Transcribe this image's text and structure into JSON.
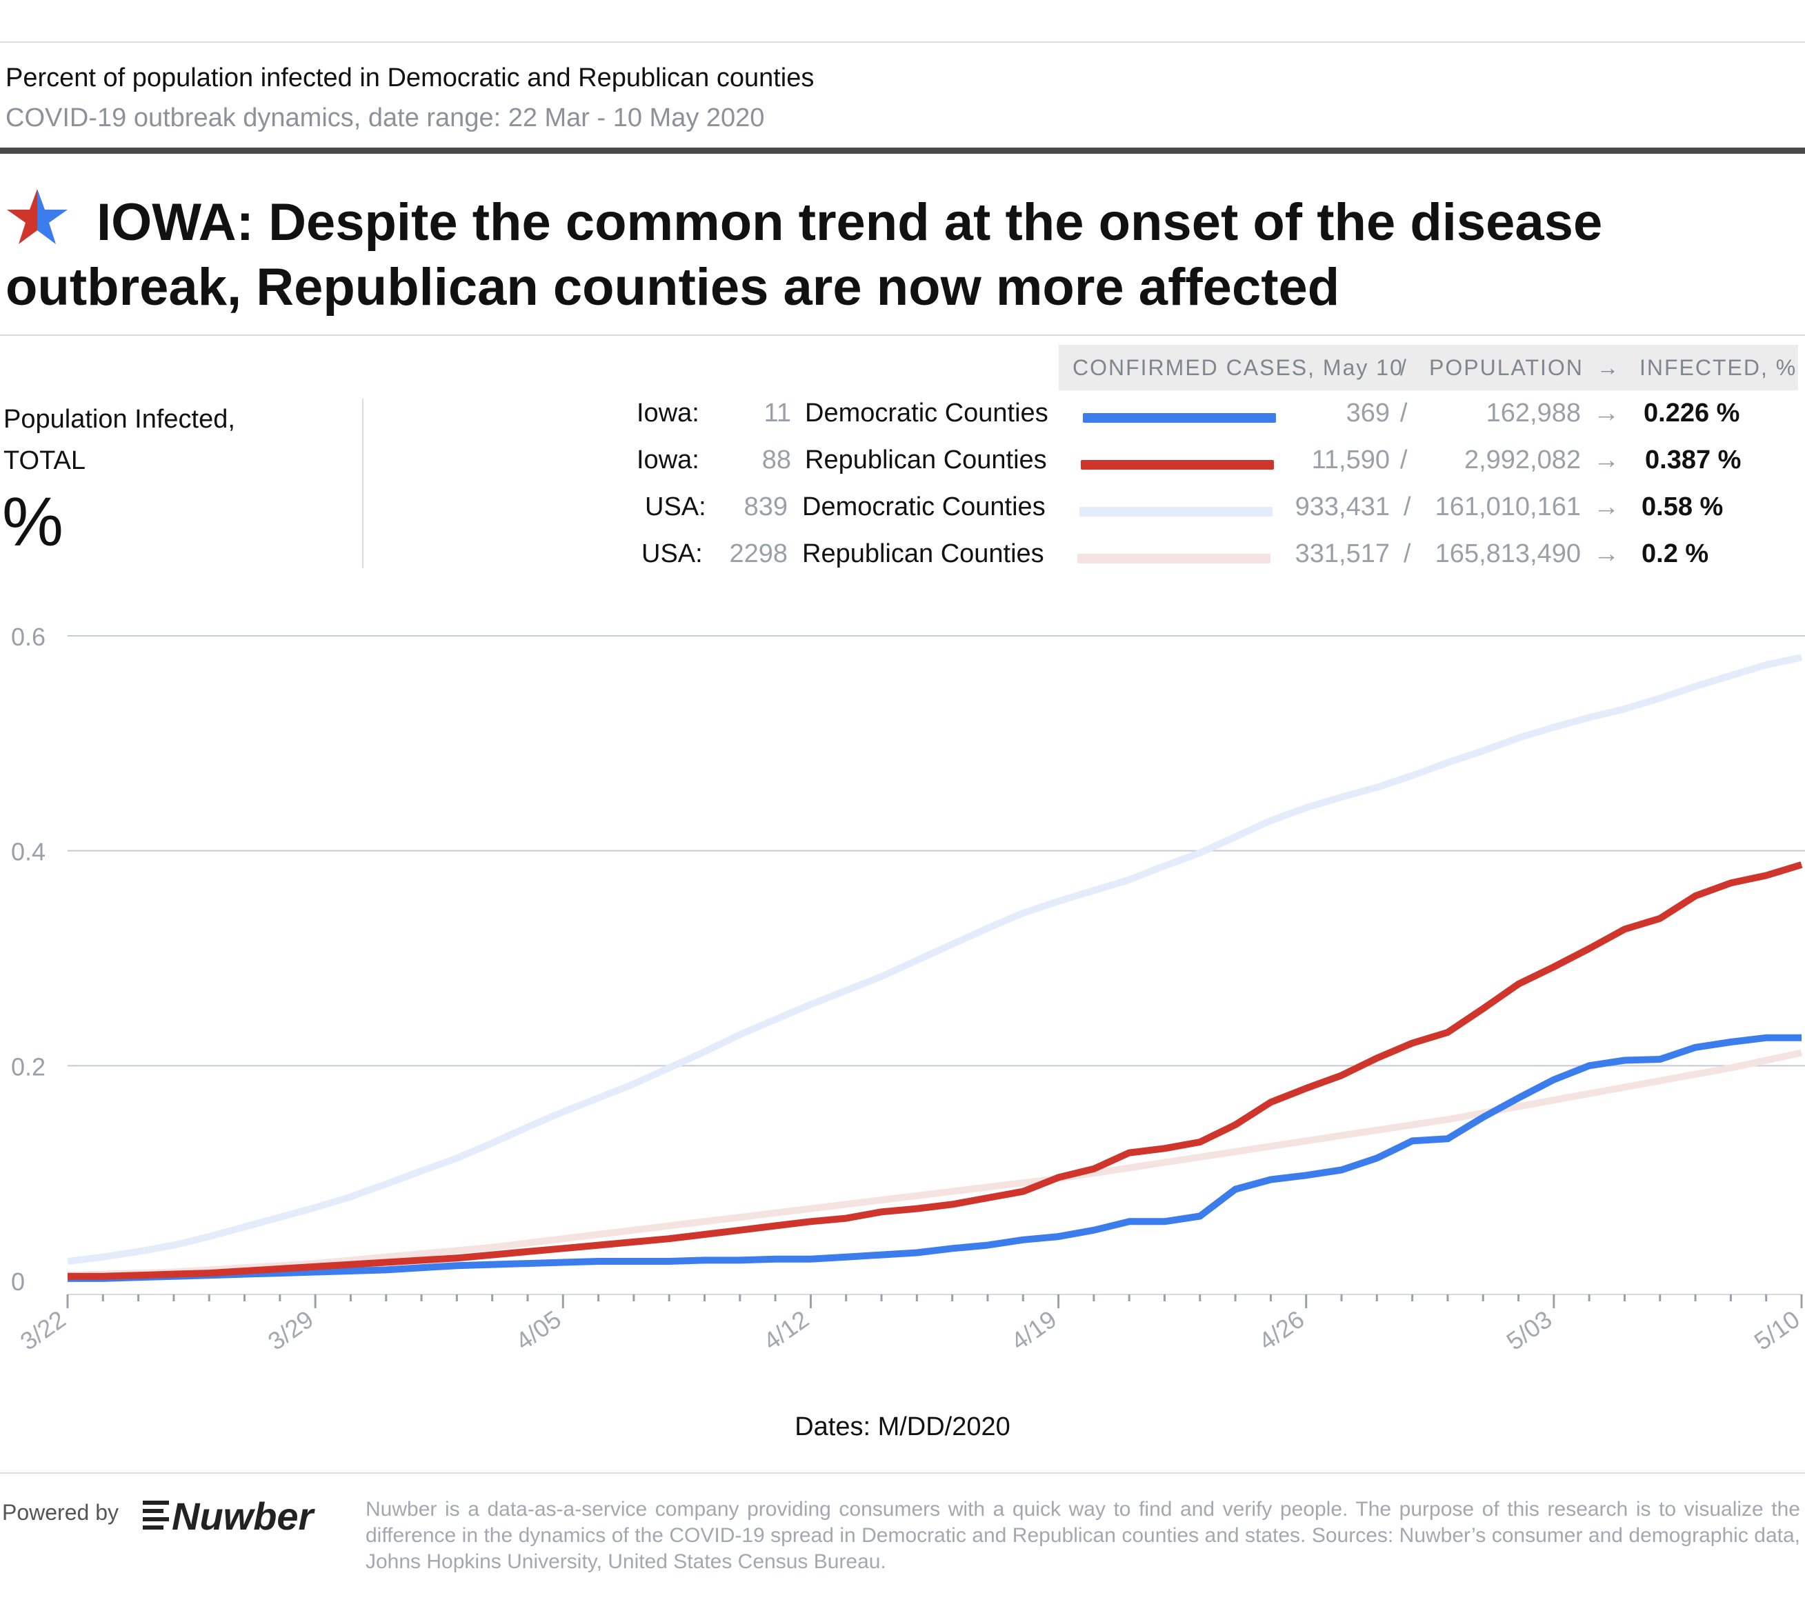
{
  "header": {
    "title": "Percent of population infected in Democratic and Republican counties",
    "subtitle": "COVID-19 outbreak dynamics, date range: 22 Mar - 10 May 2020"
  },
  "headline": {
    "line1": "IOWA: Despite the common trend at the onset of the disease",
    "line2": "outbreak, Republican counties are now more affected"
  },
  "table_header": {
    "cases": "CONFIRMED CASES, May 10",
    "slash": "/",
    "population": "POPULATION",
    "arrow": "→",
    "infected": "INFECTED, %"
  },
  "left_panel": {
    "label_line1": "Population Infected,",
    "label_line2": "TOTAL",
    "unit": "%"
  },
  "legend": [
    {
      "region": "Iowa:",
      "count": "11",
      "name": "Democratic Counties",
      "color": "#3b7ded",
      "cases": "369",
      "slash": "/",
      "population": "162,988",
      "arrow": "→",
      "infected": "0.226 %"
    },
    {
      "region": "Iowa:",
      "count": "88",
      "name": "Republican Counties",
      "color": "#d0352c",
      "cases": "11,590",
      "slash": "/",
      "population": "2,992,082",
      "arrow": "→",
      "infected": "0.387 %"
    },
    {
      "region": "USA:",
      "count": "839",
      "name": "Democratic Counties",
      "color": "#e4ebfa",
      "cases": "933,431",
      "slash": "/",
      "population": "161,010,161",
      "arrow": "→",
      "infected": "0.58 %"
    },
    {
      "region": "USA:",
      "count": "2298",
      "name": "Republican Counties",
      "color": "#f5e3e1",
      "cases": "331,517",
      "slash": "/",
      "population": "165,813,490",
      "arrow": "→",
      "infected": "0.2 %"
    }
  ],
  "chart_data": {
    "type": "line",
    "xlabel": "Dates: M/DD/2020",
    "ylabel": "",
    "ylim": [
      0,
      0.6
    ],
    "yticks": [
      0,
      0.2,
      0.4,
      0.6
    ],
    "ytick_labels": [
      "0",
      "0.2",
      "0.4",
      "0.6"
    ],
    "x": [
      "3/22",
      "3/23",
      "3/24",
      "3/25",
      "3/26",
      "3/27",
      "3/28",
      "3/29",
      "3/30",
      "3/31",
      "4/01",
      "4/02",
      "4/03",
      "4/04",
      "4/05",
      "4/06",
      "4/07",
      "4/08",
      "4/09",
      "4/10",
      "4/11",
      "4/12",
      "4/13",
      "4/14",
      "4/15",
      "4/16",
      "4/17",
      "4/18",
      "4/19",
      "4/20",
      "4/21",
      "4/22",
      "4/23",
      "4/24",
      "4/25",
      "4/26",
      "4/27",
      "4/28",
      "4/29",
      "4/30",
      "5/01",
      "5/02",
      "5/03",
      "5/04",
      "5/05",
      "5/06",
      "5/07",
      "5/08",
      "5/09",
      "5/10"
    ],
    "xtick_labels": [
      "3/22",
      "3/29",
      "4/05",
      "4/12",
      "4/19",
      "4/26",
      "5/03",
      "5/10"
    ],
    "grid": true,
    "series": [
      {
        "name": "USA: 839 Democratic Counties",
        "color": "#e4ebfa",
        "width": 10,
        "values": [
          0.018,
          0.022,
          0.027,
          0.033,
          0.041,
          0.05,
          0.059,
          0.068,
          0.078,
          0.09,
          0.102,
          0.114,
          0.128,
          0.143,
          0.157,
          0.17,
          0.183,
          0.198,
          0.213,
          0.229,
          0.243,
          0.257,
          0.27,
          0.283,
          0.298,
          0.313,
          0.328,
          0.342,
          0.353,
          0.363,
          0.373,
          0.386,
          0.398,
          0.413,
          0.428,
          0.44,
          0.45,
          0.459,
          0.47,
          0.482,
          0.493,
          0.505,
          0.515,
          0.524,
          0.532,
          0.542,
          0.553,
          0.563,
          0.573,
          0.58
        ]
      },
      {
        "name": "USA: 2298 Republican Counties",
        "color": "#f5e3e1",
        "width": 10,
        "values": [
          0.005,
          0.006,
          0.007,
          0.008,
          0.01,
          0.012,
          0.014,
          0.016,
          0.019,
          0.022,
          0.025,
          0.028,
          0.031,
          0.035,
          0.039,
          0.043,
          0.047,
          0.051,
          0.055,
          0.059,
          0.063,
          0.067,
          0.071,
          0.075,
          0.079,
          0.083,
          0.087,
          0.091,
          0.095,
          0.1,
          0.105,
          0.11,
          0.115,
          0.12,
          0.125,
          0.13,
          0.135,
          0.14,
          0.145,
          0.15,
          0.156,
          0.162,
          0.168,
          0.174,
          0.18,
          0.186,
          0.192,
          0.198,
          0.205,
          0.212
        ]
      },
      {
        "name": "Iowa: 11 Democratic Counties",
        "color": "#3b7ded",
        "width": 10,
        "values": [
          0.002,
          0.002,
          0.003,
          0.004,
          0.005,
          0.006,
          0.007,
          0.008,
          0.009,
          0.01,
          0.012,
          0.014,
          0.015,
          0.016,
          0.017,
          0.018,
          0.018,
          0.018,
          0.019,
          0.019,
          0.02,
          0.02,
          0.022,
          0.024,
          0.026,
          0.03,
          0.033,
          0.038,
          0.041,
          0.047,
          0.055,
          0.055,
          0.06,
          0.085,
          0.094,
          0.098,
          0.103,
          0.114,
          0.13,
          0.132,
          0.152,
          0.17,
          0.187,
          0.2,
          0.205,
          0.206,
          0.217,
          0.222,
          0.226,
          0.226
        ]
      },
      {
        "name": "Iowa: 88 Republican Counties",
        "color": "#d0352c",
        "width": 10,
        "values": [
          0.004,
          0.004,
          0.005,
          0.006,
          0.007,
          0.009,
          0.011,
          0.013,
          0.015,
          0.017,
          0.019,
          0.021,
          0.024,
          0.027,
          0.03,
          0.033,
          0.036,
          0.039,
          0.043,
          0.047,
          0.051,
          0.055,
          0.058,
          0.064,
          0.067,
          0.071,
          0.077,
          0.083,
          0.096,
          0.104,
          0.119,
          0.123,
          0.129,
          0.145,
          0.166,
          0.179,
          0.191,
          0.207,
          0.221,
          0.231,
          0.253,
          0.276,
          0.292,
          0.309,
          0.327,
          0.337,
          0.358,
          0.37,
          0.377,
          0.387
        ]
      }
    ]
  },
  "footer": {
    "powered_by": "Powered by",
    "logo_text": "Nuwber",
    "note": "Nuwber is a data-as-a-service company providing consumers with a quick way to find and verify people. The purpose of this research is to visualize the difference in the dynamics of the COVID-19 spread in Democratic and Republican counties and states. Sources: Nuwber’s consumer and demographic data, Johns Hopkins University, United States Census Bureau."
  }
}
